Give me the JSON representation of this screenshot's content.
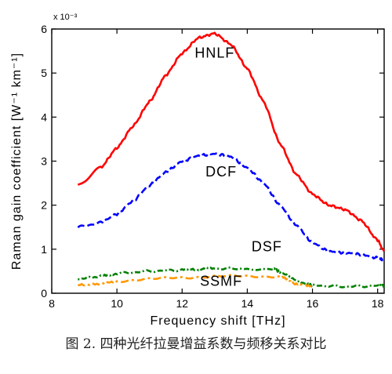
{
  "caption": "图 2. 四种光纤拉曼增益系数与频移关系对比",
  "chart_data": {
    "type": "line",
    "xlabel": "Frequency shift [THz]",
    "ylabel": "Raman gain coefficient [W⁻¹ km⁻¹]",
    "multiplier": "x 10⁻³",
    "xlim": [
      8,
      18.2
    ],
    "ylim": [
      0,
      6
    ],
    "xticks": [
      "8",
      "10",
      "12",
      "14",
      "16",
      "18"
    ],
    "yticks": [
      "0",
      "1",
      "2",
      "3",
      "4",
      "5",
      "6"
    ],
    "grid": false,
    "series": [
      {
        "name": "HNLF",
        "color": "#ff0000",
        "style": "solid",
        "x": [
          8.8,
          9.5,
          10,
          10.5,
          11,
          11.5,
          12,
          12.5,
          13,
          13.5,
          14,
          14.5,
          15,
          15.5,
          16,
          16.5,
          17,
          17.5,
          18,
          18.2
        ],
        "y": [
          2.45,
          2.85,
          3.3,
          3.8,
          4.35,
          4.95,
          5.45,
          5.8,
          5.9,
          5.65,
          5.1,
          4.35,
          3.4,
          2.7,
          2.25,
          2.0,
          1.9,
          1.65,
          1.2,
          0.95
        ]
      },
      {
        "name": "DCF",
        "color": "#0000ff",
        "style": "dashed",
        "x": [
          8.8,
          9.5,
          10,
          10.5,
          11,
          11.5,
          12,
          12.5,
          13,
          13.5,
          14,
          14.5,
          15,
          15.5,
          16,
          16.5,
          17,
          17.5,
          18,
          18.2
        ],
        "y": [
          1.5,
          1.6,
          1.8,
          2.1,
          2.45,
          2.75,
          3.0,
          3.12,
          3.17,
          3.1,
          2.85,
          2.5,
          2.0,
          1.55,
          1.15,
          0.95,
          0.92,
          0.88,
          0.8,
          0.75
        ]
      },
      {
        "name": "DSF",
        "color": "#008000",
        "style": "dotdash",
        "x": [
          8.8,
          9.5,
          10,
          11,
          12,
          12.5,
          13,
          14,
          14.8,
          15.2,
          15.6,
          16,
          17,
          18,
          18.2
        ],
        "y": [
          0.33,
          0.38,
          0.45,
          0.5,
          0.53,
          0.55,
          0.56,
          0.56,
          0.55,
          0.42,
          0.25,
          0.18,
          0.15,
          0.17,
          0.17
        ]
      },
      {
        "name": "SSMF",
        "color": "#ff9900",
        "style": "dashdot",
        "x": [
          8.8,
          9.5,
          10,
          11,
          12,
          13,
          14,
          15,
          15.2,
          15.5,
          16
        ],
        "y": [
          0.18,
          0.22,
          0.28,
          0.32,
          0.36,
          0.38,
          0.39,
          0.38,
          0.33,
          0.2,
          0.15
        ]
      }
    ],
    "annotations": [
      {
        "text": "HNLF",
        "x": 13.0,
        "y": 5.35
      },
      {
        "text": "DCF",
        "x": 13.2,
        "y": 2.65
      },
      {
        "text": "DSF",
        "x": 14.6,
        "y": 0.95
      },
      {
        "text": "SSMF",
        "x": 13.2,
        "y": 0.17
      }
    ]
  }
}
